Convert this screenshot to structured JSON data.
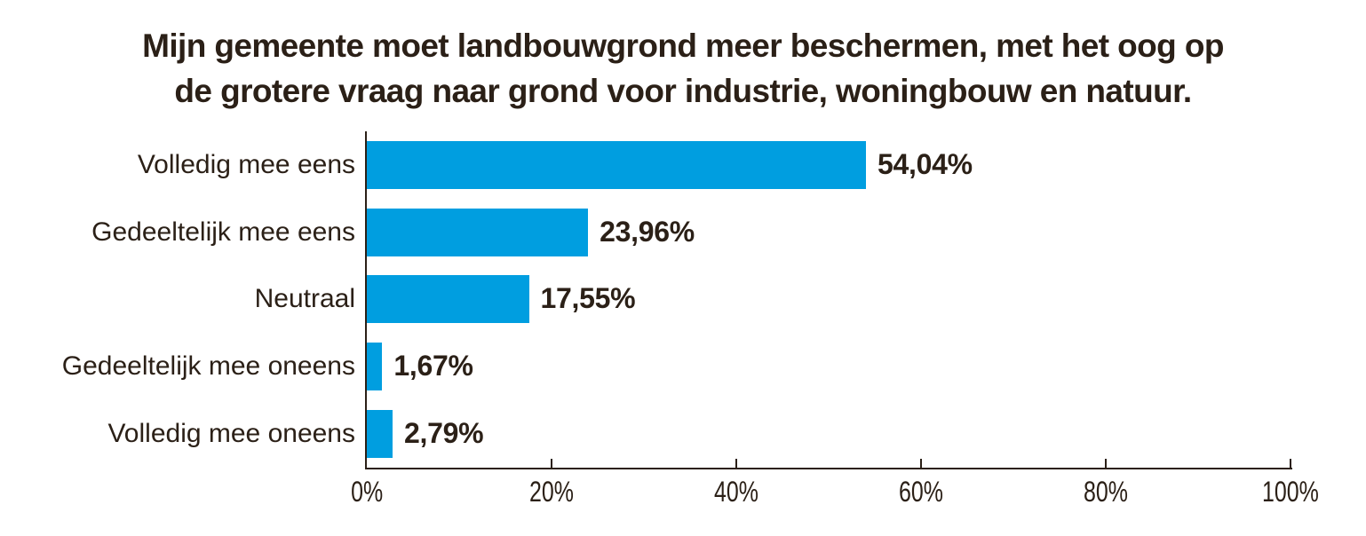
{
  "title": {
    "line1": "Mijn gemeente moet landbouwgrond meer beschermen, met het oog op",
    "line2": "de grotere vraag naar grond voor industrie, woningbouw en natuur."
  },
  "colors": {
    "bar": "#009EE0",
    "text": "#2B2017",
    "axis": "#2B2017",
    "background": "#FFFFFF"
  },
  "chart_data": {
    "type": "bar",
    "orientation": "horizontal",
    "title": "Mijn gemeente moet landbouwgrond meer beschermen, met het oog op de grotere vraag naar grond voor industrie, woningbouw en natuur.",
    "categories": [
      "Volledig mee eens",
      "Gedeeltelijk mee eens",
      "Neutraal",
      "Gedeeltelijk mee oneens",
      "Volledig mee oneens"
    ],
    "values": [
      54.04,
      23.96,
      17.55,
      1.67,
      2.79
    ],
    "value_labels": [
      "54,04%",
      "23,96%",
      "17,55%",
      "1,67%",
      "2,79%"
    ],
    "xlabel": "",
    "ylabel": "",
    "xlim": [
      0,
      100
    ],
    "x_ticks": [
      "0%",
      "20%",
      "40%",
      "60%",
      "80%",
      "100%"
    ],
    "x_tick_values": [
      0,
      20,
      40,
      60,
      80,
      100
    ],
    "grid": false,
    "legend": false,
    "bar_color": "#009EE0"
  }
}
